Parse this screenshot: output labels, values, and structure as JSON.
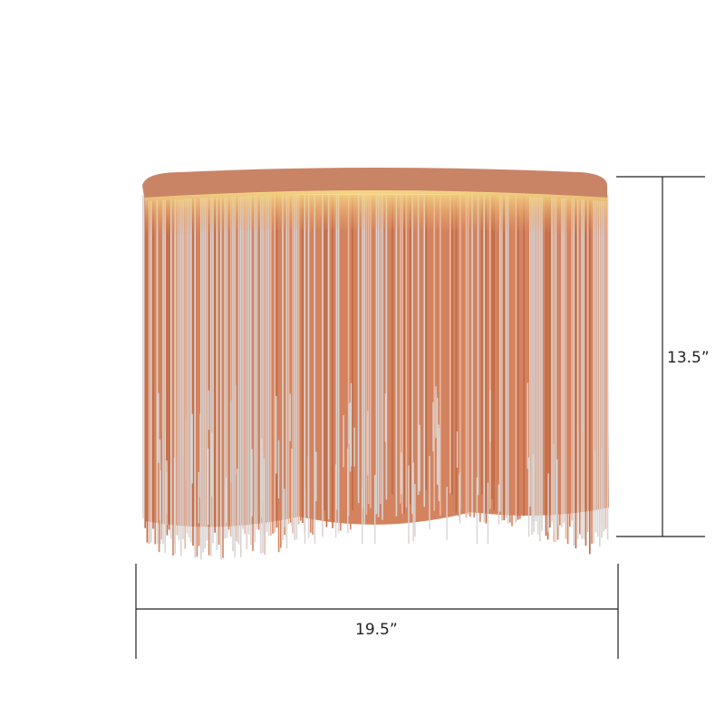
{
  "product": {
    "image_subject": "fringe-chain-ceiling-lamp",
    "colors": {
      "copper": "#d4835f",
      "copper_dark": "#c06a45",
      "copper_light": "#e8b8a3",
      "silver": "#d8d4d3",
      "glow": "#f4d27a",
      "dimension_line": "#222222"
    }
  },
  "dimensions": {
    "height_label": "13.5”",
    "width_label": "19.5”"
  }
}
